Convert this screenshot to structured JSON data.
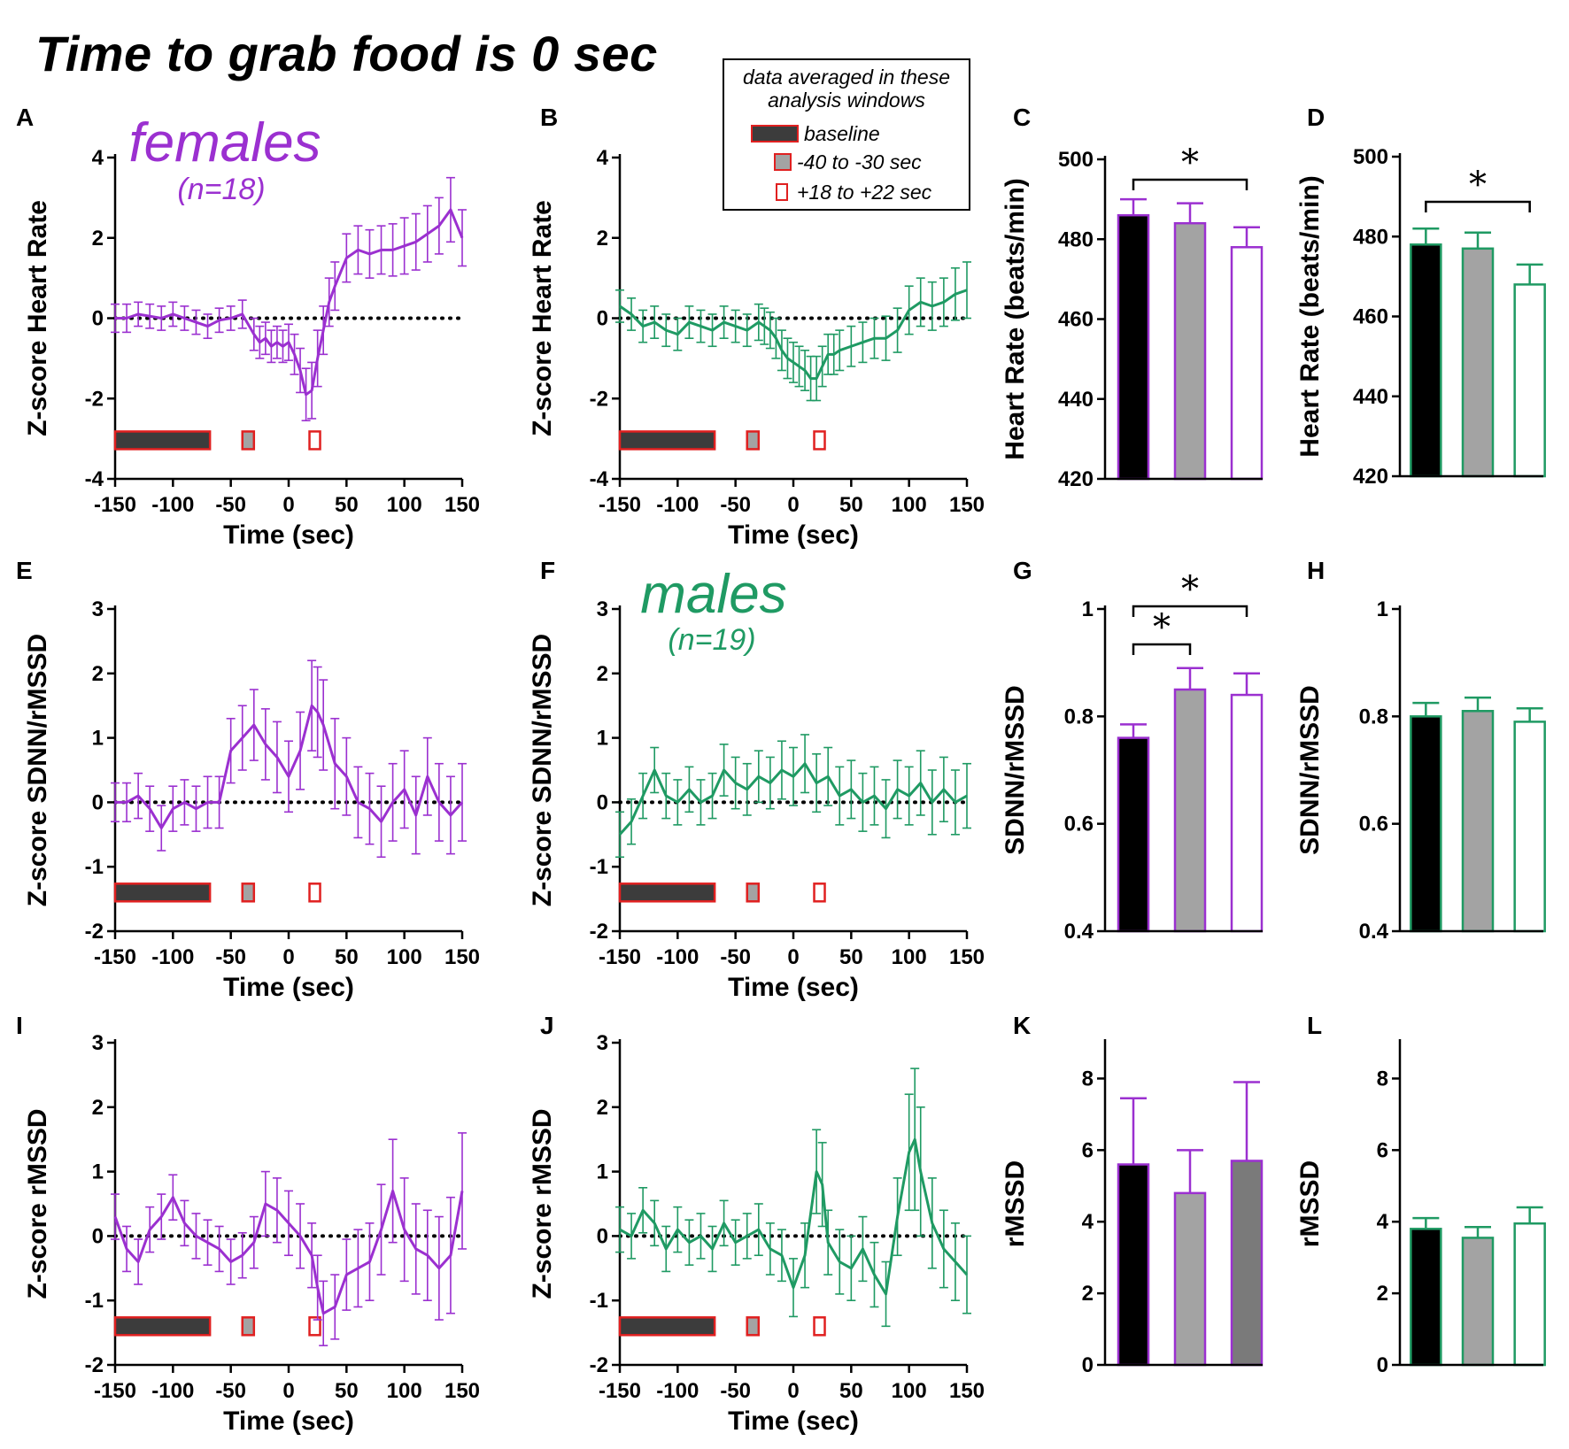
{
  "figure_title": "Time to grab food is 0 sec",
  "legend": {
    "header_line1": "data averaged in these",
    "header_line2": "analysis windows",
    "items": [
      {
        "label": "baseline",
        "fill": "#3c3c3c"
      },
      {
        "label": "-40 to -30 sec",
        "fill": "#a3a3a3"
      },
      {
        "label": "+18 to +22 sec",
        "fill": "#ffffff"
      }
    ]
  },
  "colors": {
    "female": "#9b30d0",
    "male": "#1f9a63",
    "window_border": "#e02020",
    "baseline_fill": "#3c3c3c",
    "mid_fill": "#a3a3a3",
    "dots": "#000000"
  },
  "groups": {
    "female": {
      "label": "females",
      "n": "(n=18)"
    },
    "male": {
      "label": "males",
      "n": "(n=19)"
    }
  },
  "chart_data": [
    {
      "panel": "A",
      "type": "line",
      "group": "female",
      "ylabel": "Z-score Heart Rate",
      "xlabel": "Time (sec)",
      "xlim": [
        -150,
        150
      ],
      "ylim": [
        -4,
        4
      ],
      "xticks": [
        -150,
        -100,
        -50,
        0,
        50,
        100,
        150
      ],
      "yticks": [
        -4,
        -2,
        0,
        2,
        4
      ],
      "series": [
        {
          "name": "females",
          "x": [
            -150,
            -140,
            -130,
            -120,
            -110,
            -100,
            -90,
            -80,
            -70,
            -60,
            -50,
            -40,
            -30,
            -25,
            -20,
            -15,
            -10,
            -5,
            0,
            5,
            10,
            15,
            20,
            25,
            30,
            35,
            40,
            50,
            60,
            70,
            80,
            90,
            100,
            110,
            120,
            130,
            140,
            150
          ],
          "y": [
            0,
            0,
            0.1,
            0.05,
            0,
            0.1,
            0,
            -0.1,
            -0.2,
            -0.05,
            0,
            0.1,
            -0.4,
            -0.6,
            -0.5,
            -0.7,
            -0.6,
            -0.7,
            -0.6,
            -0.9,
            -1.3,
            -1.9,
            -1.8,
            -1,
            -0.3,
            0.4,
            0.8,
            1.5,
            1.7,
            1.6,
            1.7,
            1.7,
            1.8,
            1.9,
            2.1,
            2.3,
            2.7,
            2.0
          ],
          "err": [
            0.35,
            0.35,
            0.3,
            0.3,
            0.3,
            0.3,
            0.3,
            0.3,
            0.3,
            0.3,
            0.3,
            0.35,
            0.4,
            0.4,
            0.4,
            0.4,
            0.4,
            0.4,
            0.45,
            0.5,
            0.55,
            0.65,
            0.7,
            0.7,
            0.6,
            0.6,
            0.6,
            0.6,
            0.6,
            0.6,
            0.6,
            0.65,
            0.7,
            0.7,
            0.7,
            0.7,
            0.8,
            0.7
          ]
        }
      ],
      "windows": [
        [
          -150,
          -68
        ],
        [
          -40,
          -30
        ],
        [
          18,
          22
        ]
      ],
      "zero_line": 0
    },
    {
      "panel": "B",
      "type": "line",
      "group": "male",
      "ylabel": "Z-score Heart Rate",
      "xlabel": "Time (sec)",
      "xlim": [
        -150,
        150
      ],
      "ylim": [
        -4,
        4
      ],
      "xticks": [
        -150,
        -100,
        -50,
        0,
        50,
        100,
        150
      ],
      "yticks": [
        -4,
        -2,
        0,
        2,
        4
      ],
      "series": [
        {
          "name": "males",
          "x": [
            -150,
            -140,
            -130,
            -120,
            -110,
            -100,
            -90,
            -80,
            -70,
            -60,
            -50,
            -40,
            -30,
            -25,
            -20,
            -15,
            -10,
            -5,
            0,
            5,
            10,
            15,
            20,
            25,
            30,
            35,
            40,
            50,
            60,
            70,
            80,
            90,
            100,
            110,
            120,
            130,
            140,
            150
          ],
          "y": [
            0.3,
            0.1,
            -0.2,
            -0.1,
            -0.3,
            -0.4,
            -0.1,
            -0.2,
            -0.3,
            -0.1,
            -0.2,
            -0.3,
            -0.1,
            -0.2,
            -0.3,
            -0.5,
            -0.8,
            -1.0,
            -1.1,
            -1.2,
            -1.3,
            -1.5,
            -1.5,
            -1.2,
            -0.9,
            -0.9,
            -0.8,
            -0.7,
            -0.6,
            -0.5,
            -0.5,
            -0.3,
            0.2,
            0.4,
            0.3,
            0.4,
            0.6,
            0.7
          ],
          "err": [
            0.4,
            0.4,
            0.4,
            0.4,
            0.4,
            0.4,
            0.4,
            0.4,
            0.4,
            0.4,
            0.4,
            0.4,
            0.45,
            0.45,
            0.45,
            0.5,
            0.5,
            0.5,
            0.5,
            0.5,
            0.5,
            0.55,
            0.55,
            0.5,
            0.5,
            0.5,
            0.5,
            0.5,
            0.5,
            0.5,
            0.55,
            0.55,
            0.6,
            0.6,
            0.6,
            0.6,
            0.65,
            0.7
          ]
        }
      ],
      "windows": [
        [
          -150,
          -68
        ],
        [
          -40,
          -30
        ],
        [
          18,
          22
        ]
      ],
      "zero_line": 0
    },
    {
      "panel": "C",
      "type": "bar",
      "group": "female",
      "ylabel": "Heart Rate (beats/min)",
      "ylim": [
        420,
        500
      ],
      "yticks": [
        420,
        440,
        460,
        480,
        500
      ],
      "categories": [
        "baseline",
        "-40 to -30 sec",
        "+18 to +22 sec"
      ],
      "values": [
        486,
        484,
        478
      ],
      "err": [
        4,
        5,
        5
      ],
      "sig": [
        {
          "from": 0,
          "to": 2,
          "label": "*"
        }
      ]
    },
    {
      "panel": "D",
      "type": "bar",
      "group": "male",
      "ylabel": "Heart Rate (beats/min)",
      "ylim": [
        420,
        500
      ],
      "yticks": [
        420,
        440,
        460,
        480,
        500
      ],
      "categories": [
        "baseline",
        "-40 to -30 sec",
        "+18 to +22 sec"
      ],
      "values": [
        478,
        477,
        468
      ],
      "err": [
        4,
        4,
        5
      ],
      "sig": [
        {
          "from": 0,
          "to": 2,
          "label": "*"
        }
      ]
    },
    {
      "panel": "E",
      "type": "line",
      "group": "female",
      "ylabel": "Z-score SDNN/rMSSD",
      "xlabel": "Time (sec)",
      "xlim": [
        -150,
        150
      ],
      "ylim": [
        -2,
        3
      ],
      "xticks": [
        -150,
        -100,
        -50,
        0,
        50,
        100,
        150
      ],
      "yticks": [
        -2,
        -1,
        0,
        1,
        2,
        3
      ],
      "series": [
        {
          "name": "females",
          "x": [
            -150,
            -140,
            -130,
            -120,
            -110,
            -100,
            -90,
            -80,
            -70,
            -60,
            -50,
            -40,
            -30,
            -20,
            -10,
            0,
            10,
            20,
            25,
            30,
            40,
            50,
            60,
            70,
            80,
            90,
            100,
            110,
            120,
            130,
            140,
            150
          ],
          "y": [
            0,
            0,
            0.1,
            -0.1,
            -0.4,
            -0.1,
            0,
            -0.1,
            0,
            0,
            0.8,
            1.0,
            1.2,
            0.9,
            0.7,
            0.4,
            0.8,
            1.5,
            1.4,
            1.2,
            0.6,
            0.4,
            0,
            -0.1,
            -0.3,
            0,
            0.2,
            -0.2,
            0.4,
            0,
            -0.2,
            0
          ],
          "err": [
            0.3,
            0.3,
            0.35,
            0.35,
            0.35,
            0.35,
            0.35,
            0.35,
            0.4,
            0.4,
            0.5,
            0.5,
            0.55,
            0.55,
            0.55,
            0.55,
            0.6,
            0.7,
            0.7,
            0.7,
            0.7,
            0.6,
            0.55,
            0.55,
            0.55,
            0.6,
            0.6,
            0.6,
            0.6,
            0.6,
            0.6,
            0.6
          ]
        }
      ],
      "windows": [
        [
          -150,
          -68
        ],
        [
          -40,
          -30
        ],
        [
          18,
          22
        ]
      ],
      "zero_line": 0
    },
    {
      "panel": "F",
      "type": "line",
      "group": "male",
      "ylabel": "Z-score SDNN/rMSSD",
      "xlabel": "Time (sec)",
      "xlim": [
        -150,
        150
      ],
      "ylim": [
        -2,
        3
      ],
      "xticks": [
        -150,
        -100,
        -50,
        0,
        50,
        100,
        150
      ],
      "yticks": [
        -2,
        -1,
        0,
        1,
        2,
        3
      ],
      "series": [
        {
          "name": "males",
          "x": [
            -150,
            -140,
            -130,
            -120,
            -110,
            -100,
            -90,
            -80,
            -70,
            -60,
            -50,
            -40,
            -30,
            -20,
            -10,
            0,
            10,
            20,
            30,
            40,
            50,
            60,
            70,
            80,
            90,
            100,
            110,
            120,
            130,
            140,
            150
          ],
          "y": [
            -0.5,
            -0.3,
            0.1,
            0.5,
            0.1,
            0,
            0.2,
            0,
            0.1,
            0.5,
            0.3,
            0.2,
            0.4,
            0.3,
            0.5,
            0.4,
            0.6,
            0.3,
            0.4,
            0.1,
            0.2,
            0,
            0.1,
            -0.1,
            0.2,
            0.1,
            0.3,
            0,
            0.2,
            0,
            0.1
          ],
          "err": [
            0.35,
            0.35,
            0.35,
            0.35,
            0.35,
            0.35,
            0.35,
            0.35,
            0.35,
            0.4,
            0.4,
            0.4,
            0.4,
            0.4,
            0.45,
            0.45,
            0.45,
            0.45,
            0.45,
            0.45,
            0.45,
            0.45,
            0.45,
            0.45,
            0.45,
            0.45,
            0.5,
            0.5,
            0.5,
            0.5,
            0.5
          ]
        }
      ],
      "windows": [
        [
          -150,
          -68
        ],
        [
          -40,
          -30
        ],
        [
          18,
          22
        ]
      ],
      "zero_line": 0
    },
    {
      "panel": "G",
      "type": "bar",
      "group": "female",
      "ylabel": "SDNN/rMSSD",
      "ylim": [
        0.4,
        1.0
      ],
      "yticks": [
        0.4,
        0.6,
        0.8,
        1.0
      ],
      "categories": [
        "baseline",
        "-40 to -30 sec",
        "+18 to +22 sec"
      ],
      "values": [
        0.76,
        0.85,
        0.84
      ],
      "err": [
        0.025,
        0.04,
        0.04
      ],
      "sig": [
        {
          "from": 0,
          "to": 1,
          "label": "*"
        },
        {
          "from": 0,
          "to": 2,
          "label": "*"
        }
      ]
    },
    {
      "panel": "H",
      "type": "bar",
      "group": "male",
      "ylabel": "SDNN/rMSSD",
      "ylim": [
        0.4,
        1.0
      ],
      "yticks": [
        0.4,
        0.6,
        0.8,
        1.0
      ],
      "categories": [
        "baseline",
        "-40 to -30 sec",
        "+18 to +22 sec"
      ],
      "values": [
        0.8,
        0.81,
        0.79
      ],
      "err": [
        0.025,
        0.025,
        0.025
      ],
      "sig": []
    },
    {
      "panel": "I",
      "type": "line",
      "group": "female",
      "ylabel": "Z-score rMSSD",
      "xlabel": "Time (sec)",
      "xlim": [
        -150,
        150
      ],
      "ylim": [
        -2,
        3
      ],
      "xticks": [
        -150,
        -100,
        -50,
        0,
        50,
        100,
        150
      ],
      "yticks": [
        -2,
        -1,
        0,
        1,
        2,
        3
      ],
      "series": [
        {
          "name": "females",
          "x": [
            -150,
            -140,
            -130,
            -120,
            -110,
            -100,
            -90,
            -80,
            -70,
            -60,
            -50,
            -40,
            -30,
            -20,
            -10,
            0,
            10,
            20,
            25,
            30,
            40,
            50,
            60,
            70,
            80,
            90,
            100,
            110,
            120,
            130,
            140,
            150
          ],
          "y": [
            0.3,
            -0.2,
            -0.4,
            0.1,
            0.3,
            0.6,
            0.2,
            0,
            -0.1,
            -0.2,
            -0.4,
            -0.3,
            -0.1,
            0.5,
            0.4,
            0.2,
            0,
            -0.3,
            -0.8,
            -1.2,
            -1.1,
            -0.6,
            -0.5,
            -0.4,
            0.1,
            0.7,
            0.1,
            -0.2,
            -0.3,
            -0.5,
            -0.3,
            0.7
          ],
          "err": [
            0.35,
            0.35,
            0.35,
            0.35,
            0.35,
            0.35,
            0.35,
            0.35,
            0.35,
            0.35,
            0.35,
            0.35,
            0.4,
            0.5,
            0.5,
            0.5,
            0.5,
            0.5,
            0.5,
            0.5,
            0.5,
            0.55,
            0.6,
            0.6,
            0.7,
            0.8,
            0.8,
            0.7,
            0.7,
            0.8,
            0.9,
            0.9
          ]
        }
      ],
      "windows": [
        [
          -150,
          -68
        ],
        [
          -40,
          -30
        ],
        [
          18,
          22
        ]
      ],
      "zero_line": 0
    },
    {
      "panel": "J",
      "type": "line",
      "group": "male",
      "ylabel": "Z-score rMSSD",
      "xlabel": "Time (sec)",
      "xlim": [
        -150,
        150
      ],
      "ylim": [
        -2,
        3
      ],
      "xticks": [
        -150,
        -100,
        -50,
        0,
        50,
        100,
        150
      ],
      "yticks": [
        -2,
        -1,
        0,
        1,
        2,
        3
      ],
      "series": [
        {
          "name": "males",
          "x": [
            -150,
            -140,
            -130,
            -120,
            -110,
            -100,
            -90,
            -80,
            -70,
            -60,
            -50,
            -40,
            -30,
            -20,
            -10,
            0,
            10,
            20,
            25,
            30,
            40,
            50,
            60,
            70,
            80,
            90,
            100,
            105,
            110,
            120,
            130,
            140,
            150
          ],
          "y": [
            0.1,
            0,
            0.4,
            0.2,
            -0.2,
            0.1,
            -0.1,
            0,
            -0.2,
            0.2,
            -0.1,
            0,
            0.1,
            -0.2,
            -0.3,
            -0.8,
            -0.3,
            1.0,
            0.8,
            -0.1,
            -0.4,
            -0.5,
            -0.2,
            -0.6,
            -0.9,
            0.3,
            1.3,
            1.5,
            1.0,
            0.2,
            -0.2,
            -0.4,
            -0.6
          ],
          "err": [
            0.35,
            0.35,
            0.35,
            0.35,
            0.35,
            0.35,
            0.35,
            0.35,
            0.35,
            0.35,
            0.35,
            0.35,
            0.4,
            0.4,
            0.4,
            0.45,
            0.5,
            0.65,
            0.65,
            0.5,
            0.5,
            0.5,
            0.5,
            0.5,
            0.5,
            0.6,
            0.9,
            1.1,
            1.0,
            0.7,
            0.6,
            0.6,
            0.6
          ]
        }
      ],
      "windows": [
        [
          -150,
          -68
        ],
        [
          -40,
          -30
        ],
        [
          18,
          22
        ]
      ],
      "zero_line": 0
    },
    {
      "panel": "K",
      "type": "bar",
      "group": "female",
      "ylabel": "rMSSD",
      "ylim": [
        0,
        9
      ],
      "yticks": [
        0,
        2,
        4,
        6,
        8
      ],
      "categories": [
        "baseline",
        "-40 to -30 sec",
        "+18 to +22 sec"
      ],
      "values": [
        5.6,
        4.8,
        5.7
      ],
      "err": [
        1.85,
        1.2,
        2.2
      ],
      "fills": [
        "#000000",
        "#a3a3a3",
        "#7a7a7a"
      ],
      "sig": []
    },
    {
      "panel": "L",
      "type": "bar",
      "group": "male",
      "ylabel": "rMSSD",
      "ylim": [
        0,
        9
      ],
      "yticks": [
        0,
        2,
        4,
        6,
        8
      ],
      "categories": [
        "baseline",
        "-40 to -30 sec",
        "+18 to +22 sec"
      ],
      "values": [
        3.8,
        3.55,
        3.95
      ],
      "err": [
        0.3,
        0.3,
        0.45
      ],
      "sig": []
    }
  ]
}
